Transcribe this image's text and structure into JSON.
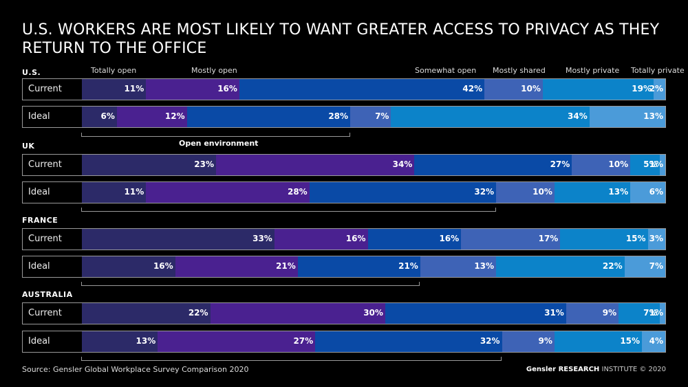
{
  "chart_data": {
    "type": "bar",
    "orientation": "horizontal",
    "stacked": true,
    "normalized": true,
    "title": "U.S. WORKERS ARE MOST LIKELY TO WANT GREATER ACCESS TO PRIVACY AS THEY RETURN TO THE OFFICE",
    "categories": [
      "Totally open",
      "Mostly open",
      "Somewhat open",
      "Mostly shared",
      "Mostly private",
      "Totally private"
    ],
    "colors": [
      "#2c2a68",
      "#4a2190",
      "#0a4aa6",
      "#3e63b6",
      "#0c83c9",
      "#4b9bd9"
    ],
    "groups": [
      {
        "country": "U.S.",
        "rows": [
          {
            "label": "Current",
            "values": [
              11,
              16,
              42,
              10,
              19,
              2
            ],
            "value_labels": [
              "11%",
              "16%",
              "42%",
              "10%",
              "19%",
              "2%"
            ]
          },
          {
            "label": "Ideal",
            "values": [
              6,
              12,
              28,
              7,
              34,
              13
            ],
            "value_labels": [
              "6%",
              "12%",
              "28%",
              "7%",
              "34%",
              "13%"
            ]
          }
        ],
        "annotation": "Open environment"
      },
      {
        "country": "UK",
        "rows": [
          {
            "label": "Current",
            "values": [
              23,
              34,
              27,
              10,
              5,
              1
            ],
            "value_labels": [
              "23%",
              "34%",
              "27%",
              "10%",
              "5%",
              "1%"
            ]
          },
          {
            "label": "Ideal",
            "values": [
              11,
              28,
              32,
              10,
              13,
              6
            ],
            "value_labels": [
              "11%",
              "28%",
              "32%",
              "10%",
              "13%",
              "6%"
            ]
          }
        ]
      },
      {
        "country": "FRANCE",
        "rows": [
          {
            "label": "Current",
            "values": [
              33,
              16,
              16,
              17,
              15,
              3
            ],
            "value_labels": [
              "33%",
              "16%",
              "16%",
              "17%",
              "15%",
              "3%"
            ]
          },
          {
            "label": "Ideal",
            "values": [
              16,
              21,
              21,
              13,
              22,
              7
            ],
            "value_labels": [
              "16%",
              "21%",
              "21%",
              "13%",
              "22%",
              "7%"
            ]
          }
        ]
      },
      {
        "country": "AUSTRALIA",
        "rows": [
          {
            "label": "Current",
            "values": [
              22,
              30,
              31,
              9,
              7,
              1
            ],
            "value_labels": [
              "22%",
              "30%",
              "31%",
              "9%",
              "7%",
              "1%"
            ]
          },
          {
            "label": "Ideal",
            "values": [
              13,
              27,
              32,
              9,
              15,
              4
            ],
            "value_labels": [
              "13%",
              "27%",
              "32%",
              "9%",
              "15%",
              "4%"
            ]
          }
        ]
      }
    ]
  },
  "footer": {
    "source": "Source: Gensler Global Workplace Survey Comparison 2020",
    "credit_brand": "Gensler RESEARCH",
    "credit_rest": "INSTITUTE © 2020"
  }
}
